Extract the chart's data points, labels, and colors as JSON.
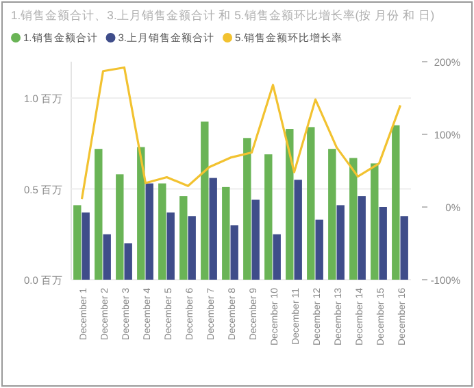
{
  "chart_data": {
    "type": "bar",
    "title": "1.销售金额合计、3.上月销售金额合计 和 5.销售金额环比增长率(按 月份 和 日)",
    "categories": [
      "December 1",
      "December 2",
      "December 3",
      "December 4",
      "December 5",
      "December 6",
      "December 7",
      "December 8",
      "December 9",
      "December 10",
      "December 11",
      "December 12",
      "December 13",
      "December 14",
      "December 15",
      "December 16"
    ],
    "series": [
      {
        "name": "1.销售金额合计",
        "color": "#6ab456",
        "values": [
          0.41,
          0.72,
          0.58,
          0.73,
          0.53,
          0.46,
          0.87,
          0.51,
          0.78,
          0.69,
          0.83,
          0.84,
          0.72,
          0.67,
          0.64,
          0.85
        ]
      },
      {
        "name": "3.上月销售金额合计",
        "color": "#3f4d8a",
        "values": [
          0.37,
          0.25,
          0.2,
          0.53,
          0.37,
          0.35,
          0.56,
          0.3,
          0.44,
          0.25,
          0.55,
          0.33,
          0.41,
          0.46,
          0.4,
          0.35
        ]
      },
      {
        "name": "5.销售金额环比增长率",
        "color": "#f2c230",
        "type": "line",
        "axis": "y2",
        "values": [
          11,
          187,
          192,
          33,
          41,
          29,
          55,
          68,
          75,
          168,
          48,
          148,
          82,
          42,
          60,
          140
        ]
      }
    ],
    "ylim": [
      0,
      1.2
    ],
    "yticks": [
      {
        "value": 0,
        "label": "0.0 百万"
      },
      {
        "value": 0.5,
        "label": "0.5 百万"
      },
      {
        "value": 1,
        "label": "1.0 百万"
      }
    ],
    "y2lim": [
      -100,
      200
    ],
    "y2ticks": [
      {
        "value": -100,
        "label": "-100%"
      },
      {
        "value": 0,
        "label": "0%"
      },
      {
        "value": 100,
        "label": "100%"
      },
      {
        "value": 200,
        "label": "200%"
      }
    ],
    "grid": "y",
    "legend": "top left",
    "marker": "none",
    "line_style": "solid"
  }
}
